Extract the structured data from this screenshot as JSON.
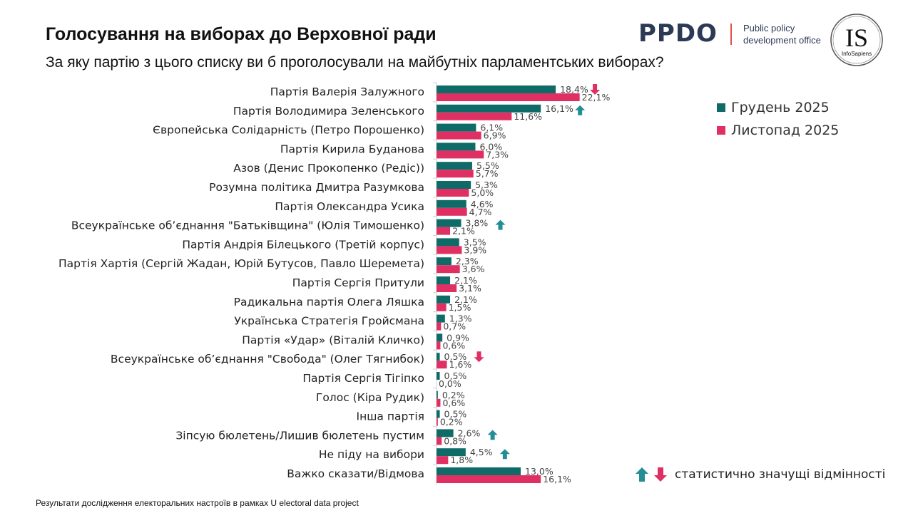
{
  "header": {
    "title": "Голосування на виборах до Верховної ради",
    "subtitle": "За яку партію з цього списку ви б проголосували на майбутніх парламентських виборах?"
  },
  "logos": {
    "ppdo": "PPDO",
    "ppdo_subtitle_line1": "Public policy",
    "ppdo_subtitle_line2": "development office",
    "infosapiens": "IS",
    "infosapiens_text": "InfoSapiens"
  },
  "footer": "Результати дослідження електоральних настроїв в рамках U electoral data project",
  "significance_legend": "статистично значущі відмінності",
  "colors": {
    "december": "#0e6b67",
    "november": "#e03063",
    "arrow_up": "#238e96",
    "arrow_down": "#e03063"
  },
  "chart_data": {
    "type": "bar",
    "orientation": "horizontal",
    "xlim": [
      0,
      25
    ],
    "value_format": "percent, comma decimal",
    "legend_position": "right",
    "categories": [
      "Партія Валерія Залужного",
      "Партія Володимира Зеленського",
      "Європейська Солідарність (Петро Порошенко)",
      "Партія Кирила Буданова",
      "Азов (Денис Прокопенко (Редіс))",
      "Розумна політика Дмитра Разумкова",
      "Партія Олександра Усика",
      "Всеукраїнське об’єднання \"Батьківщина\" (Юлія Тимошенко)",
      "Партія Андрія Білецького (Третій корпус)",
      "Партія Хартія (Сергій Жадан, Юрій Бутусов, Павло Шеремета)",
      "Партія Сергія Притули",
      "Радикальна партія Олега Ляшка",
      "Українська Стратегія Гройсмана",
      "Партія «Удар» (Віталій Кличко)",
      "Всеукраїнське об’єднання \"Свобода\" (Олег Тягнибок)",
      "Партія Сергія Тігіпко",
      "Голос (Кіра Рудик)",
      "Інша партія",
      "Зіпсую бюлетень/Лишив бюлетень пустим",
      "Не піду на вибори",
      "Важко сказати/Відмова"
    ],
    "series": [
      {
        "name": "Грудень 2025",
        "values": [
          18.4,
          16.1,
          6.1,
          6.0,
          5.5,
          5.3,
          4.6,
          3.8,
          3.5,
          2.3,
          2.1,
          2.1,
          1.3,
          0.9,
          0.5,
          0.5,
          0.2,
          0.5,
          2.6,
          4.5,
          13.0
        ]
      },
      {
        "name": "Листопад 2025",
        "values": [
          22.1,
          11.6,
          6.9,
          7.3,
          5.7,
          5.0,
          4.7,
          2.1,
          3.9,
          3.6,
          3.1,
          1.5,
          0.7,
          0.6,
          1.6,
          0.0,
          0.6,
          0.2,
          0.8,
          1.8,
          16.1
        ]
      }
    ],
    "significance": [
      "down",
      "up",
      null,
      null,
      null,
      null,
      null,
      "up",
      null,
      null,
      null,
      null,
      null,
      null,
      "down",
      null,
      null,
      null,
      "up",
      "up",
      null
    ]
  }
}
